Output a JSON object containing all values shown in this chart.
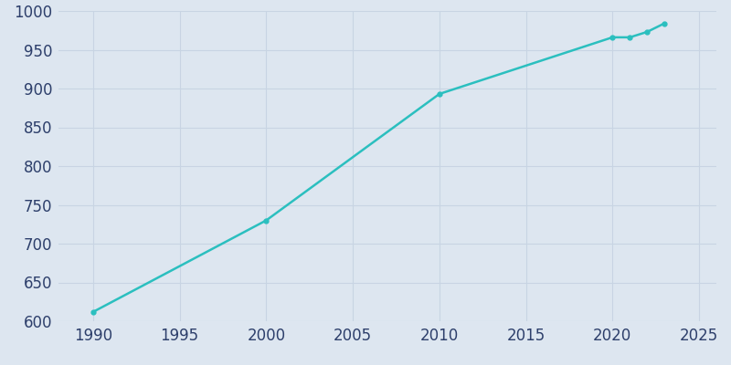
{
  "years": [
    1990,
    2000,
    2010,
    2020,
    2021,
    2022,
    2023
  ],
  "population": [
    612,
    730,
    893,
    966,
    966,
    973,
    984
  ],
  "line_color": "#2bbfbf",
  "marker_style": "o",
  "marker_size": 3.5,
  "line_width": 1.8,
  "xlim": [
    1988,
    2026
  ],
  "ylim": [
    600,
    1000
  ],
  "xticks": [
    1990,
    1995,
    2000,
    2005,
    2010,
    2015,
    2020,
    2025
  ],
  "yticks": [
    600,
    650,
    700,
    750,
    800,
    850,
    900,
    950,
    1000
  ],
  "figure_background_color": "#dde6f0",
  "axes_background_color": "#dde6f0",
  "grid_color": "#c8d4e3",
  "tick_label_color": "#2d3f6b",
  "tick_label_fontsize": 12
}
